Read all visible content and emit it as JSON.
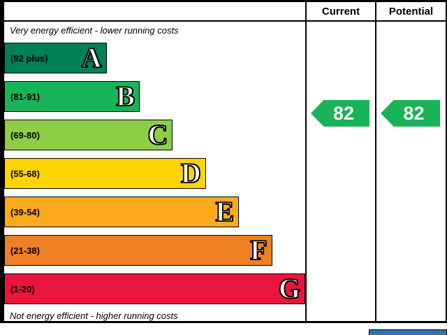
{
  "header": {
    "current_label": "Current",
    "potential_label": "Potential"
  },
  "captions": {
    "top": "Very energy efficient - lower running costs",
    "bottom": "Not energy efficient - higher running costs"
  },
  "bands": [
    {
      "letter": "A",
      "range": "(92 plus)",
      "color": "#008054",
      "width_pct": 34
    },
    {
      "letter": "B",
      "range": "(81-91)",
      "color": "#19b459",
      "width_pct": 45
    },
    {
      "letter": "C",
      "range": "(69-80)",
      "color": "#8dce46",
      "width_pct": 56
    },
    {
      "letter": "D",
      "range": "(55-68)",
      "color": "#ffd500",
      "width_pct": 67
    },
    {
      "letter": "E",
      "range": "(39-54)",
      "color": "#fbaa1b",
      "width_pct": 78
    },
    {
      "letter": "F",
      "range": "(21-38)",
      "color": "#ef8023",
      "width_pct": 89
    },
    {
      "letter": "G",
      "range": "(1-20)",
      "color": "#e9153b",
      "width_pct": 100
    }
  ],
  "ratings": {
    "current": {
      "value": "82",
      "color": "#19b459"
    },
    "potential": {
      "value": "82",
      "color": "#19b459"
    }
  },
  "accent": {
    "eu_box_color": "#2e75b6"
  },
  "chart_data": {
    "type": "bar",
    "title": "Energy efficiency rating bands",
    "categories": [
      "A",
      "B",
      "C",
      "D",
      "E",
      "F",
      "G"
    ],
    "band_ranges": [
      "92 plus",
      "81-91",
      "69-80",
      "55-68",
      "39-54",
      "21-38",
      "1-20"
    ],
    "band_colors": [
      "#008054",
      "#19b459",
      "#8dce46",
      "#ffd500",
      "#fbaa1b",
      "#ef8023",
      "#e9153b"
    ],
    "bar_lengths_pct": [
      34,
      45,
      56,
      67,
      78,
      89,
      100
    ],
    "series": [
      {
        "name": "Current",
        "values": [
          82
        ]
      },
      {
        "name": "Potential",
        "values": [
          82
        ]
      }
    ],
    "annotations": [
      "Very energy efficient - lower running costs",
      "Not energy efficient - higher running costs"
    ],
    "xlabel": "",
    "ylabel": "",
    "legend_position": "top-right-columns",
    "grid": false
  }
}
